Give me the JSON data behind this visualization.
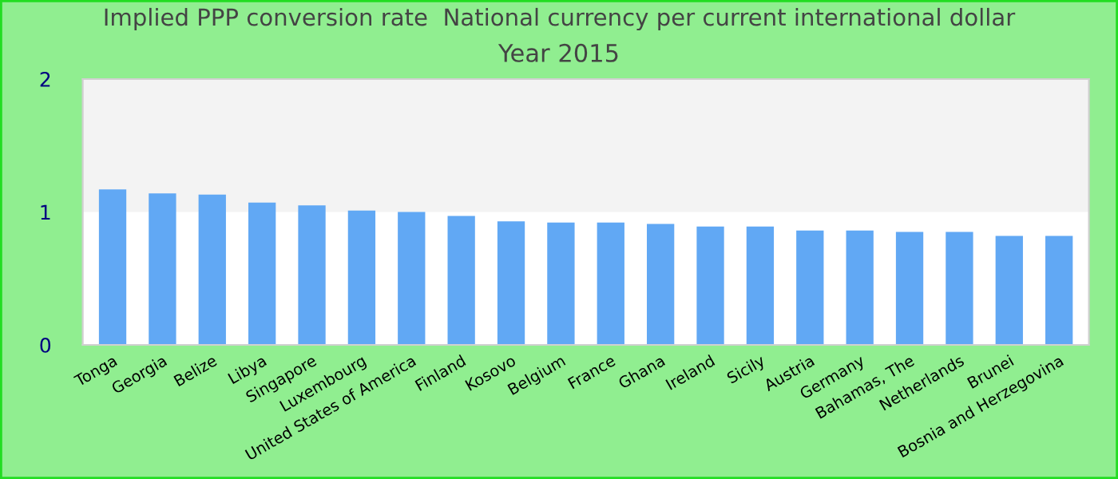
{
  "chart_data": {
    "type": "bar",
    "title": "Implied PPP conversion rate  National currency per current international dollar",
    "subtitle": "Year 2015",
    "categories": [
      "Tonga",
      "Georgia",
      "Belize",
      "Libya",
      "Singapore",
      "Luxembourg",
      "United States of America",
      "Finland",
      "Kosovo",
      "Belgium",
      "France",
      "Ghana",
      "Ireland",
      "Sicily",
      "Austria",
      "Germany",
      "Bahamas, The",
      "Netherlands",
      "Brunei",
      "Bosnia and Herzegovina"
    ],
    "values": [
      1.17,
      1.14,
      1.13,
      1.07,
      1.05,
      1.01,
      1.0,
      0.97,
      0.93,
      0.92,
      0.92,
      0.91,
      0.89,
      0.89,
      0.86,
      0.86,
      0.85,
      0.85,
      0.82,
      0.82
    ],
    "color": "#61a8f4",
    "ylim": [
      0,
      2
    ],
    "yticks": [
      0,
      1,
      2
    ],
    "grid": false,
    "legend": false,
    "bands": [
      {
        "axis": "y",
        "from": 1,
        "to": 2,
        "color": "#f3f3f3"
      }
    ]
  }
}
